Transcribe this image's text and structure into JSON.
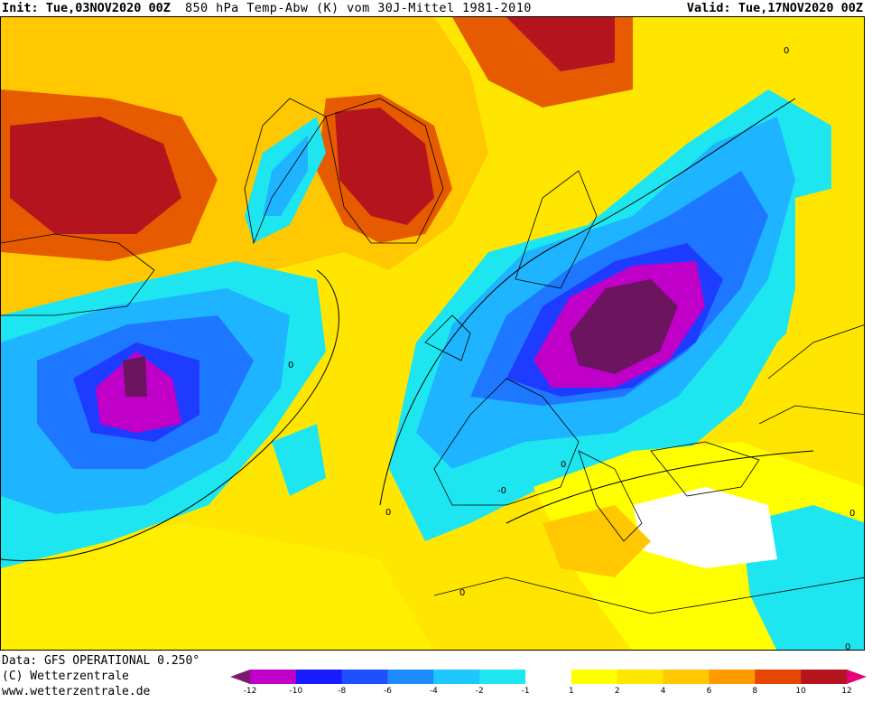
{
  "header": {
    "init": "Init: Tue,03NOV2020 00Z",
    "title": "850 hPa Temp-Abw (K) vom 30J-Mittel 1981-2010",
    "valid": "Valid: Tue,17NOV2020 00Z"
  },
  "footer": {
    "source": "Data: GFS OPERATIONAL 0.250°",
    "copyright": "(C) Wetterzentrale",
    "url": "www.wetterzentrale.de"
  },
  "colorbar": {
    "labels": [
      "-12",
      "-10",
      "-8",
      "-6",
      "-4",
      "-2",
      "-1",
      "1",
      "2",
      "4",
      "6",
      "8",
      "10",
      "12"
    ],
    "colors": [
      "#7a1a6e",
      "#c000c8",
      "#1a1aff",
      "#1e50ff",
      "#1e8cff",
      "#1ec8ff",
      "#1ee6f0",
      "#ffffff",
      "#ffff00",
      "#ffe600",
      "#ffc800",
      "#ff9b00",
      "#e64600",
      "#b4141e",
      "#e6007a"
    ]
  },
  "map": {
    "contour_labels": [
      "0",
      "0",
      "0",
      "0",
      "-0",
      "0",
      "0",
      "0"
    ],
    "colors": {
      "deep_purple": "#6b1560",
      "magenta": "#c000c8",
      "blue": "#1e3cff",
      "mid_blue": "#1e78ff",
      "light_blue": "#1eb4ff",
      "cyan": "#1ee6f0",
      "white": "#ffffff",
      "yellow": "#ffff00",
      "gold": "#ffd700",
      "orange": "#ffb400",
      "dark_orange": "#e65a00",
      "red": "#b4141e",
      "dark_red": "#a00a3c"
    }
  }
}
